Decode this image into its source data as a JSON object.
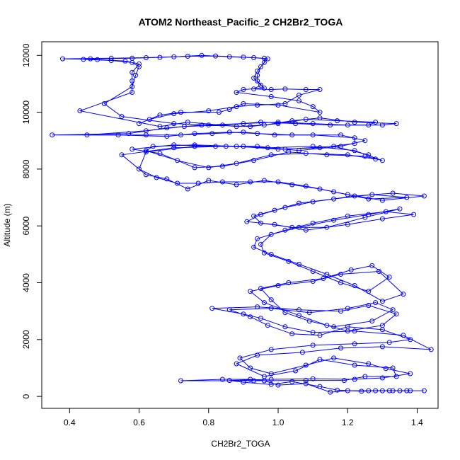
{
  "chart_data": {
    "type": "line",
    "title": "ATOM2 Northeast_Pacific_2 CH2Br2_TOGA",
    "xlabel": "CH2Br2_TOGA",
    "ylabel": "Altitude (m)",
    "xlim": [
      0.32,
      1.46
    ],
    "ylim": [
      -420,
      12480
    ],
    "xticks": [
      0.4,
      0.6,
      0.8,
      1.0,
      1.2,
      1.4
    ],
    "xtick_labels": [
      "0.4",
      "0.6",
      "0.8",
      "1.0",
      "1.2",
      "1.4"
    ],
    "yticks": [
      0,
      2000,
      4000,
      6000,
      8000,
      10000,
      12000
    ],
    "ytick_labels": [
      "0",
      "2000",
      "4000",
      "6000",
      "8000",
      "10000",
      "12000"
    ],
    "grid": false,
    "marker": "open-circle",
    "series_color": "#0000ff",
    "series": [
      {
        "points": [
          [
            1.42,
            200
          ],
          [
            1.37,
            200
          ],
          [
            1.33,
            200
          ],
          [
            1.3,
            200
          ],
          [
            1.26,
            200
          ],
          [
            1.2,
            200
          ],
          [
            1.15,
            150
          ],
          [
            1.08,
            450
          ],
          [
            1.0,
            400
          ],
          [
            0.96,
            550
          ],
          [
            0.92,
            600
          ],
          [
            0.84,
            600
          ],
          [
            0.72,
            550
          ],
          [
            0.93,
            550
          ],
          [
            1.08,
            560
          ],
          [
            1.19,
            560
          ],
          [
            1.25,
            700
          ],
          [
            1.34,
            700
          ],
          [
            1.33,
            1000
          ],
          [
            1.22,
            1100
          ],
          [
            1.12,
            1300
          ],
          [
            1.05,
            900
          ],
          [
            0.96,
            700
          ],
          [
            0.88,
            1150
          ],
          [
            0.94,
            1450
          ],
          [
            1.07,
            1550
          ],
          [
            1.18,
            1700
          ],
          [
            1.3,
            1750
          ],
          [
            1.44,
            1650
          ],
          [
            1.36,
            2150
          ],
          [
            1.22,
            2300
          ],
          [
            1.1,
            2250
          ],
          [
            1.02,
            2450
          ],
          [
            0.95,
            2750
          ],
          [
            0.9,
            2900
          ],
          [
            0.81,
            3100
          ],
          [
            0.94,
            3150
          ],
          [
            1.06,
            3050
          ],
          [
            1.18,
            3000
          ],
          [
            1.26,
            3200
          ],
          [
            1.34,
            2900
          ],
          [
            1.3,
            2500
          ],
          [
            1.2,
            2300
          ],
          [
            1.14,
            2500
          ],
          [
            1.06,
            2850
          ],
          [
            0.96,
            3300
          ],
          [
            0.92,
            3700
          ],
          [
            1.0,
            3900
          ],
          [
            1.1,
            4050
          ],
          [
            1.18,
            4300
          ],
          [
            1.29,
            4400
          ],
          [
            1.36,
            3600
          ],
          [
            1.3,
            3350
          ],
          [
            1.22,
            3900
          ],
          [
            1.14,
            4300
          ],
          [
            1.06,
            4650
          ],
          [
            0.98,
            5000
          ],
          [
            0.93,
            5250
          ],
          [
            0.94,
            5550
          ],
          [
            1.02,
            5850
          ],
          [
            1.1,
            6100
          ],
          [
            1.2,
            6350
          ],
          [
            1.31,
            6500
          ],
          [
            1.39,
            6400
          ],
          [
            1.3,
            6250
          ],
          [
            1.2,
            6050
          ],
          [
            1.08,
            5850
          ],
          [
            0.99,
            6050
          ],
          [
            0.91,
            6150
          ],
          [
            0.95,
            6400
          ],
          [
            1.02,
            6650
          ],
          [
            1.1,
            6850
          ],
          [
            1.22,
            7050
          ],
          [
            1.33,
            7150
          ],
          [
            1.42,
            7050
          ],
          [
            1.3,
            6900
          ],
          [
            1.2,
            7100
          ],
          [
            1.12,
            7300
          ],
          [
            1.04,
            7450
          ],
          [
            0.96,
            7600
          ],
          [
            0.88,
            7450
          ],
          [
            0.8,
            7600
          ],
          [
            0.74,
            7300
          ],
          [
            0.68,
            7650
          ],
          [
            0.62,
            7800
          ],
          [
            0.55,
            8500
          ],
          [
            0.7,
            8750
          ],
          [
            0.85,
            8800
          ],
          [
            0.97,
            8750
          ],
          [
            1.1,
            8800
          ],
          [
            1.22,
            8650
          ],
          [
            1.3,
            8300
          ],
          [
            1.25,
            8450
          ],
          [
            1.14,
            8500
          ],
          [
            1.03,
            8600
          ],
          [
            0.93,
            8300
          ],
          [
            0.84,
            8100
          ],
          [
            0.76,
            8050
          ],
          [
            0.66,
            8550
          ],
          [
            0.58,
            8700
          ],
          [
            0.7,
            8850
          ],
          [
            0.82,
            8800
          ],
          [
            0.94,
            8800
          ],
          [
            1.06,
            8650
          ],
          [
            1.18,
            8800
          ],
          [
            1.25,
            9000
          ],
          [
            1.18,
            9200
          ],
          [
            1.04,
            9200
          ],
          [
            0.94,
            9250
          ],
          [
            0.86,
            9300
          ],
          [
            0.76,
            9250
          ],
          [
            0.68,
            9150
          ],
          [
            0.54,
            9200
          ],
          [
            0.35,
            9200
          ],
          [
            0.57,
            9250
          ],
          [
            0.68,
            9450
          ],
          [
            0.78,
            9550
          ],
          [
            0.9,
            9600
          ],
          [
            1.0,
            9650
          ],
          [
            1.1,
            9600
          ],
          [
            1.2,
            9550
          ],
          [
            1.3,
            9550
          ],
          [
            1.34,
            9600
          ],
          [
            1.22,
            9650
          ],
          [
            1.12,
            9800
          ],
          [
            1.04,
            9700
          ],
          [
            0.96,
            9550
          ],
          [
            0.88,
            9500
          ],
          [
            0.74,
            9650
          ],
          [
            0.66,
            9500
          ],
          [
            0.43,
            10050
          ],
          [
            0.58,
            10700
          ],
          [
            0.58,
            11100
          ],
          [
            0.58,
            11400
          ],
          [
            0.6,
            11700
          ],
          [
            0.56,
            11800
          ],
          [
            0.48,
            11850
          ],
          [
            0.38,
            11880
          ],
          [
            0.52,
            11900
          ],
          [
            0.62,
            11920
          ],
          [
            0.7,
            11950
          ],
          [
            0.78,
            12000
          ],
          [
            0.86,
            11950
          ],
          [
            0.93,
            11920
          ],
          [
            0.97,
            11880
          ],
          [
            0.95,
            11600
          ],
          [
            0.94,
            11300
          ],
          [
            0.94,
            11100
          ],
          [
            0.96,
            10850
          ],
          [
            0.9,
            10800
          ],
          [
            0.88,
            10700
          ],
          [
            0.98,
            10550
          ],
          [
            1.06,
            10400
          ],
          [
            1.1,
            10200
          ],
          [
            1.12,
            10000
          ],
          [
            1.0,
            10250
          ],
          [
            0.9,
            10300
          ],
          [
            0.86,
            10100
          ],
          [
            0.83,
            10000
          ],
          [
            0.72,
            10000
          ],
          [
            0.66,
            9900
          ],
          [
            0.6,
            9600
          ]
        ]
      },
      {
        "points": [
          [
            1.38,
            200
          ],
          [
            1.35,
            200
          ],
          [
            1.32,
            200
          ],
          [
            1.28,
            200
          ],
          [
            1.24,
            180
          ],
          [
            1.17,
            220
          ],
          [
            1.12,
            350
          ],
          [
            1.04,
            520
          ],
          [
            0.98,
            420
          ],
          [
            0.9,
            500
          ],
          [
            0.86,
            560
          ],
          [
            0.98,
            600
          ],
          [
            1.1,
            620
          ],
          [
            1.22,
            600
          ],
          [
            1.3,
            650
          ],
          [
            1.38,
            800
          ],
          [
            1.31,
            980
          ],
          [
            1.26,
            1150
          ],
          [
            1.16,
            1350
          ],
          [
            1.08,
            1100
          ],
          [
            0.98,
            800
          ],
          [
            0.92,
            1000
          ],
          [
            0.89,
            1350
          ],
          [
            0.98,
            1650
          ],
          [
            1.1,
            1800
          ],
          [
            1.22,
            1850
          ],
          [
            1.32,
            1900
          ],
          [
            1.38,
            2000
          ],
          [
            1.3,
            2350
          ],
          [
            1.2,
            2450
          ],
          [
            1.12,
            2150
          ],
          [
            1.04,
            2200
          ],
          [
            0.97,
            2500
          ],
          [
            0.92,
            2800
          ],
          [
            0.86,
            3050
          ],
          [
            0.98,
            3100
          ],
          [
            1.09,
            2950
          ],
          [
            1.2,
            3100
          ],
          [
            1.28,
            3300
          ],
          [
            1.33,
            3050
          ],
          [
            1.27,
            2650
          ],
          [
            1.16,
            2450
          ],
          [
            1.09,
            2650
          ],
          [
            1.02,
            2950
          ],
          [
            0.98,
            3400
          ],
          [
            0.95,
            3800
          ],
          [
            1.03,
            4000
          ],
          [
            1.13,
            4150
          ],
          [
            1.21,
            4450
          ],
          [
            1.27,
            4600
          ],
          [
            1.32,
            4200
          ],
          [
            1.26,
            3700
          ],
          [
            1.18,
            4000
          ],
          [
            1.1,
            4400
          ],
          [
            1.03,
            4750
          ],
          [
            0.96,
            5050
          ],
          [
            0.95,
            5350
          ],
          [
            0.98,
            5700
          ],
          [
            1.06,
            5950
          ],
          [
            1.16,
            6200
          ],
          [
            1.26,
            6400
          ],
          [
            1.35,
            6600
          ],
          [
            1.25,
            6300
          ],
          [
            1.14,
            5950
          ],
          [
            1.04,
            5950
          ],
          [
            0.95,
            6100
          ],
          [
            0.93,
            6350
          ],
          [
            0.99,
            6550
          ],
          [
            1.06,
            6800
          ],
          [
            1.16,
            6950
          ],
          [
            1.27,
            7100
          ],
          [
            1.37,
            7000
          ],
          [
            1.26,
            6950
          ],
          [
            1.16,
            7200
          ],
          [
            1.08,
            7400
          ],
          [
            1.0,
            7550
          ],
          [
            0.92,
            7550
          ],
          [
            0.84,
            7550
          ],
          [
            0.77,
            7500
          ],
          [
            0.71,
            7500
          ],
          [
            0.65,
            7700
          ],
          [
            0.6,
            8000
          ],
          [
            0.62,
            8600
          ],
          [
            0.76,
            8800
          ],
          [
            0.9,
            8800
          ],
          [
            1.02,
            8700
          ],
          [
            1.16,
            8800
          ],
          [
            1.26,
            8500
          ],
          [
            1.28,
            8350
          ],
          [
            1.2,
            8500
          ],
          [
            1.08,
            8550
          ],
          [
            0.98,
            8500
          ],
          [
            0.88,
            8200
          ],
          [
            0.8,
            8050
          ],
          [
            0.71,
            8300
          ],
          [
            0.62,
            8650
          ],
          [
            0.64,
            8800
          ],
          [
            0.76,
            8850
          ],
          [
            0.88,
            8800
          ],
          [
            1.0,
            8700
          ],
          [
            1.12,
            8750
          ],
          [
            1.22,
            8900
          ],
          [
            1.22,
            9100
          ],
          [
            1.1,
            9200
          ],
          [
            0.99,
            9200
          ],
          [
            0.9,
            9300
          ],
          [
            0.81,
            9250
          ],
          [
            0.72,
            9200
          ],
          [
            0.62,
            9200
          ],
          [
            0.45,
            9200
          ],
          [
            0.62,
            9350
          ],
          [
            0.73,
            9500
          ],
          [
            0.84,
            9550
          ],
          [
            0.95,
            9650
          ],
          [
            1.05,
            9600
          ],
          [
            1.15,
            9550
          ],
          [
            1.26,
            9550
          ],
          [
            1.28,
            9650
          ],
          [
            1.17,
            9700
          ],
          [
            1.08,
            9750
          ],
          [
            1.0,
            9600
          ],
          [
            0.92,
            9500
          ],
          [
            0.8,
            9550
          ],
          [
            0.7,
            9600
          ],
          [
            0.55,
            9850
          ],
          [
            0.5,
            10300
          ],
          [
            0.58,
            10900
          ],
          [
            0.59,
            11300
          ],
          [
            0.6,
            11600
          ],
          [
            0.58,
            11750
          ],
          [
            0.52,
            11820
          ],
          [
            0.44,
            11860
          ],
          [
            0.46,
            11880
          ],
          [
            0.58,
            11900
          ],
          [
            0.66,
            11930
          ],
          [
            0.74,
            11970
          ],
          [
            0.82,
            11980
          ],
          [
            0.9,
            11940
          ],
          [
            0.96,
            11900
          ],
          [
            0.96,
            11750
          ],
          [
            0.94,
            11450
          ],
          [
            0.93,
            11200
          ],
          [
            0.95,
            10950
          ],
          [
            0.93,
            10820
          ],
          [
            0.98,
            10800
          ],
          [
            1.02,
            10820
          ],
          [
            1.08,
            10800
          ],
          [
            1.12,
            10800
          ],
          [
            1.06,
            10600
          ],
          [
            1.02,
            10300
          ],
          [
            0.94,
            10250
          ],
          [
            0.88,
            10200
          ],
          [
            0.8,
            10050
          ],
          [
            0.7,
            9950
          ],
          [
            0.63,
            9750
          ]
        ]
      }
    ]
  }
}
